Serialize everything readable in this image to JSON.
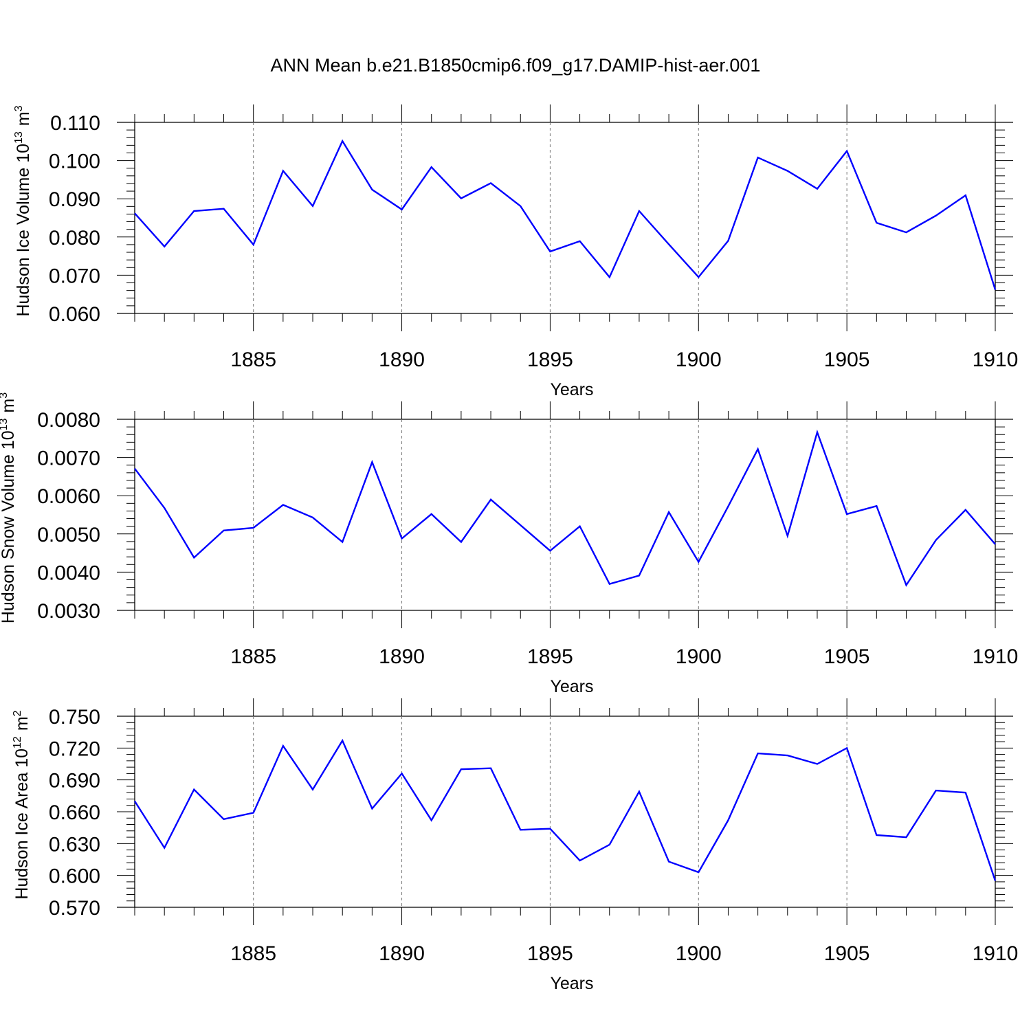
{
  "title": "ANN Mean b.e21.B1850cmip6.f09_g17.DAMIP-hist-aer.001",
  "colors": {
    "line": "#0000ff",
    "axis": "#000000",
    "grid": "#777777"
  },
  "chart_data": [
    {
      "type": "line",
      "ylabel": {
        "text": "Hudson Ice Volume 10",
        "sup": "13",
        "unit": "m",
        "unit_sup": "3"
      },
      "xlabel": "Years",
      "xlim": [
        1881,
        1910
      ],
      "ylim": [
        0.06,
        0.11
      ],
      "xticks": [
        "1885",
        "1890",
        "1895",
        "1900",
        "1905",
        "1910"
      ],
      "yticks": [
        "0.060",
        "0.070",
        "0.080",
        "0.090",
        "0.100",
        "0.110"
      ],
      "grid": "vertical dashed at major x ticks",
      "x": [
        1881,
        1882,
        1883,
        1884,
        1885,
        1886,
        1887,
        1888,
        1889,
        1890,
        1891,
        1892,
        1893,
        1894,
        1895,
        1896,
        1897,
        1898,
        1899,
        1900,
        1901,
        1902,
        1903,
        1904,
        1905,
        1906,
        1907,
        1908,
        1909,
        1910
      ],
      "series": [
        {
          "values": [
            0.0862,
            0.0775,
            0.0868,
            0.0874,
            0.078,
            0.0973,
            0.0881,
            0.1051,
            0.0924,
            0.0872,
            0.0983,
            0.0901,
            0.0941,
            0.0881,
            0.0762,
            0.0789,
            0.0695,
            0.0868,
            0.0781,
            0.0695,
            0.079,
            0.1008,
            0.0973,
            0.0926,
            0.1025,
            0.0837,
            0.0812,
            0.0856,
            0.0909,
            0.0662
          ]
        }
      ]
    },
    {
      "type": "line",
      "ylabel": {
        "text": "Hudson Snow Volume 10",
        "sup": "13",
        "unit": "m",
        "unit_sup": "3"
      },
      "xlabel": "Years",
      "xlim": [
        1881,
        1910
      ],
      "ylim": [
        0.003,
        0.008
      ],
      "xticks": [
        "1885",
        "1890",
        "1895",
        "1900",
        "1905",
        "1910"
      ],
      "yticks": [
        "0.0030",
        "0.0040",
        "0.0050",
        "0.0060",
        "0.0070",
        "0.0080"
      ],
      "grid": "vertical dashed at major x ticks",
      "x": [
        1881,
        1882,
        1883,
        1884,
        1885,
        1886,
        1887,
        1888,
        1889,
        1890,
        1891,
        1892,
        1893,
        1894,
        1895,
        1896,
        1897,
        1898,
        1899,
        1900,
        1901,
        1902,
        1903,
        1904,
        1905,
        1906,
        1907,
        1908,
        1909,
        1910
      ],
      "series": [
        {
          "values": [
            0.00671,
            0.00568,
            0.00438,
            0.00509,
            0.00516,
            0.00576,
            0.00543,
            0.00479,
            0.00688,
            0.00488,
            0.00552,
            0.00479,
            0.0059,
            0.00523,
            0.00456,
            0.0052,
            0.00369,
            0.00391,
            0.00557,
            0.00427,
            0.00572,
            0.00722,
            0.00495,
            0.00766,
            0.00552,
            0.00573,
            0.00366,
            0.00484,
            0.00563,
            0.00473
          ]
        }
      ]
    },
    {
      "type": "line",
      "ylabel": {
        "text": "Hudson Ice Area 10",
        "sup": "12",
        "unit": "m",
        "unit_sup": "2"
      },
      "xlabel": "Years",
      "xlim": [
        1881,
        1910
      ],
      "ylim": [
        0.57,
        0.75
      ],
      "xticks": [
        "1885",
        "1890",
        "1895",
        "1900",
        "1905",
        "1910"
      ],
      "yticks": [
        "0.570",
        "0.600",
        "0.630",
        "0.660",
        "0.690",
        "0.720",
        "0.750"
      ],
      "grid": "vertical dashed at major x ticks",
      "x": [
        1881,
        1882,
        1883,
        1884,
        1885,
        1886,
        1887,
        1888,
        1889,
        1890,
        1891,
        1892,
        1893,
        1894,
        1895,
        1896,
        1897,
        1898,
        1899,
        1900,
        1901,
        1902,
        1903,
        1904,
        1905,
        1906,
        1907,
        1908,
        1909,
        1910
      ],
      "series": [
        {
          "values": [
            0.67,
            0.626,
            0.681,
            0.653,
            0.659,
            0.722,
            0.681,
            0.727,
            0.663,
            0.696,
            0.652,
            0.7,
            0.701,
            0.643,
            0.644,
            0.614,
            0.629,
            0.679,
            0.613,
            0.603,
            0.652,
            0.715,
            0.713,
            0.705,
            0.72,
            0.638,
            0.636,
            0.68,
            0.678,
            0.595
          ]
        }
      ]
    }
  ]
}
